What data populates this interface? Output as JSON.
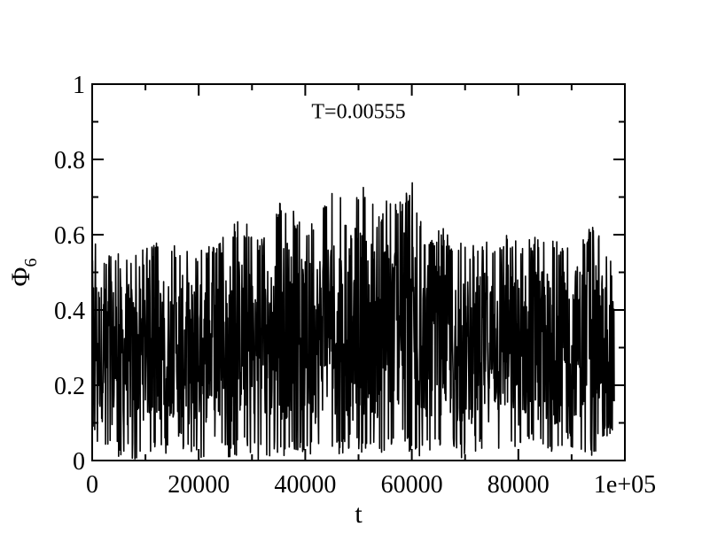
{
  "chart_data": {
    "type": "line",
    "title": "",
    "xlabel": "t",
    "ylabel_main": "Φ",
    "ylabel_sub": "6",
    "xlim": [
      0,
      100000
    ],
    "ylim": [
      0,
      1
    ],
    "x_ticks": [
      0,
      20000,
      40000,
      60000,
      80000,
      100000
    ],
    "x_tick_labels": [
      "0",
      "20000",
      "40000",
      "60000",
      "80000",
      "1e+05"
    ],
    "y_ticks": [
      0,
      0.2,
      0.4,
      0.6,
      0.8,
      1
    ],
    "y_tick_labels": [
      "0",
      "0.2",
      "0.4",
      "0.6",
      "0.8",
      "1"
    ],
    "grid": false,
    "legend": "none",
    "annotations": [
      {
        "text": "T=0.00555",
        "x": 50000,
        "y": 0.91
      }
    ],
    "color": "#000000",
    "series": [
      {
        "x_start": 0,
        "x_end": 98000,
        "envelope_x": [
          0,
          2000,
          4000,
          6000,
          8000,
          10000,
          12000,
          14000,
          16000,
          18000,
          20000,
          22000,
          24000,
          26000,
          28000,
          30000,
          32000,
          34000,
          36000,
          38000,
          40000,
          42000,
          44000,
          46000,
          48000,
          49000,
          50000,
          52000,
          54000,
          56000,
          58000,
          60000,
          62000,
          64000,
          66000,
          68000,
          70000,
          72000,
          74000,
          76000,
          78000,
          80000,
          82000,
          84000,
          86000,
          88000,
          90000,
          92000,
          94000,
          96000,
          98000
        ],
        "envelope_max": [
          0.62,
          0.55,
          0.56,
          0.55,
          0.56,
          0.57,
          0.58,
          0.57,
          0.58,
          0.57,
          0.56,
          0.58,
          0.58,
          0.63,
          0.64,
          0.62,
          0.59,
          0.65,
          0.71,
          0.66,
          0.62,
          0.65,
          0.7,
          0.72,
          0.65,
          0.74,
          0.73,
          0.72,
          0.65,
          0.72,
          0.69,
          0.75,
          0.62,
          0.6,
          0.62,
          0.59,
          0.57,
          0.58,
          0.6,
          0.59,
          0.62,
          0.58,
          0.6,
          0.61,
          0.59,
          0.58,
          0.61,
          0.62,
          0.62,
          0.59,
          0.52
        ],
        "envelope_min": [
          0.05,
          0.02,
          0.01,
          0.0,
          0.0,
          0.03,
          0.01,
          0.02,
          0.04,
          0.01,
          0.0,
          0.02,
          0.04,
          0.0,
          0.02,
          0.0,
          0.0,
          0.01,
          0.0,
          0.03,
          0.02,
          0.0,
          0.04,
          0.01,
          0.02,
          0.06,
          0.02,
          0.01,
          0.0,
          0.03,
          0.05,
          0.0,
          0.01,
          0.03,
          0.03,
          0.01,
          0.0,
          0.02,
          0.01,
          0.03,
          0.02,
          0.0,
          0.03,
          0.01,
          0.0,
          0.02,
          0.03,
          0.02,
          0.01,
          0.04,
          0.08
        ],
        "mean": 0.3,
        "samples": 1600
      }
    ]
  }
}
